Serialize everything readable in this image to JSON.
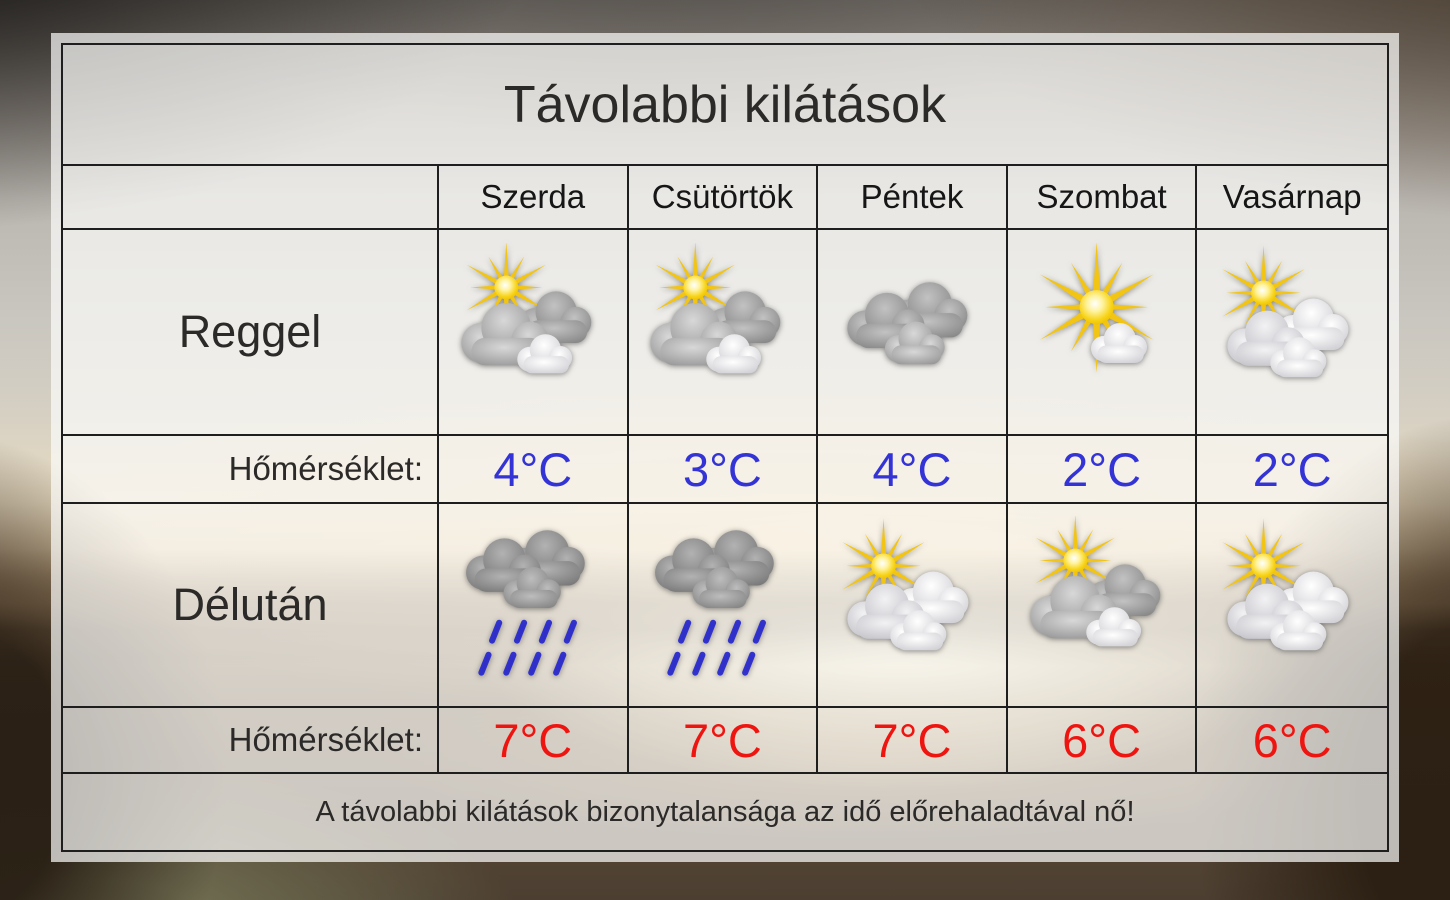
{
  "title": "Távolabbi kilátások",
  "days": [
    "Szerda",
    "Csütörtök",
    "Péntek",
    "Szombat",
    "Vasárnap"
  ],
  "rows": {
    "morning": {
      "label": "Reggel",
      "icons": [
        "sun-gray-clouds",
        "sun-gray-clouds",
        "gray-clouds",
        "sun-small-cloud",
        "sun-white-clouds"
      ],
      "temp_label": "Hőmérséklet:",
      "temps": [
        "4°C",
        "3°C",
        "4°C",
        "2°C",
        "2°C"
      ],
      "temp_color": "#3434d6"
    },
    "afternoon": {
      "label": "Délután",
      "icons": [
        "rain-clouds",
        "rain-clouds",
        "sun-white-clouds",
        "sun-gray-clouds",
        "sun-white-clouds"
      ],
      "temp_label": "Hőmérséklet:",
      "temps": [
        "7°C",
        "7°C",
        "7°C",
        "6°C",
        "6°C"
      ],
      "temp_color": "#ee1511"
    }
  },
  "footer": "A távolabbi kilátások bizonytalansága az idő előrehaladtával nő!",
  "icon_colors": {
    "sun_yellow": "#f2c413",
    "cloud_gray": "#a0a0a0",
    "cloud_white": "#f4f4f6",
    "rain_blue": "#2727cf"
  }
}
